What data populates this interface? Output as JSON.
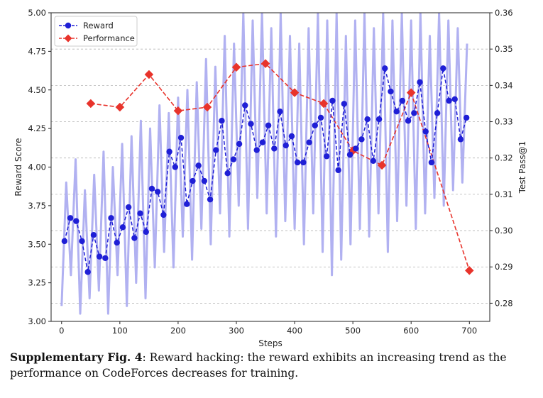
{
  "chart_data": {
    "type": "line",
    "xlabel": "Steps",
    "ylabel_left": "Reward Score",
    "ylabel_right": "Test Pass@1",
    "xlim": [
      -18,
      735
    ],
    "ylim_left": [
      3.0,
      5.0
    ],
    "ylim_right": [
      0.275,
      0.36
    ],
    "x_ticks": [
      "0",
      "100",
      "200",
      "300",
      "400",
      "500",
      "600",
      "700"
    ],
    "y_left_ticks": [
      "3.00",
      "3.25",
      "3.50",
      "3.75",
      "4.00",
      "4.25",
      "4.50",
      "4.75",
      "5.00"
    ],
    "y_right_ticks": [
      "0.28",
      "0.29",
      "0.30",
      "0.31",
      "0.32",
      "0.33",
      "0.34",
      "0.35",
      "0.36"
    ],
    "grid": true,
    "legend_position": "top-left",
    "series": [
      {
        "name": "Reward",
        "axis": "left",
        "color": "#1f1fd6",
        "marker": "circle",
        "linestyle": "dashed",
        "x": [
          5,
          15,
          25,
          35,
          45,
          55,
          65,
          75,
          85,
          95,
          105,
          115,
          125,
          135,
          145,
          155,
          165,
          175,
          185,
          195,
          205,
          215,
          225,
          235,
          245,
          255,
          265,
          275,
          285,
          295,
          305,
          315,
          325,
          335,
          345,
          355,
          365,
          375,
          385,
          395,
          405,
          415,
          425,
          435,
          445,
          455,
          465,
          475,
          485,
          495,
          505,
          515,
          525,
          535,
          545,
          555,
          565,
          575,
          585,
          595,
          605,
          615,
          625,
          635,
          645,
          655,
          665,
          675,
          685,
          695
        ],
        "values": [
          3.52,
          3.67,
          3.65,
          3.52,
          3.32,
          3.56,
          3.42,
          3.41,
          3.67,
          3.51,
          3.61,
          3.74,
          3.54,
          3.7,
          3.58,
          3.86,
          3.84,
          3.69,
          4.1,
          4.0,
          4.19,
          3.76,
          3.91,
          4.01,
          3.91,
          3.79,
          4.11,
          4.3,
          3.96,
          4.05,
          4.15,
          4.4,
          4.28,
          4.11,
          4.16,
          4.27,
          4.12,
          4.36,
          4.14,
          4.2,
          4.03,
          4.03,
          4.16,
          4.27,
          4.32,
          4.07,
          4.43,
          3.98,
          4.41,
          4.08,
          4.12,
          4.18,
          4.31,
          4.04,
          4.31,
          4.64,
          4.49,
          4.36,
          4.43,
          4.3,
          4.35,
          4.55,
          4.23,
          4.03,
          4.35,
          4.64,
          4.43,
          4.44,
          4.18,
          4.32
        ]
      },
      {
        "name": "Performance",
        "axis": "right",
        "color": "#e8332b",
        "marker": "diamond",
        "linestyle": "dashed",
        "x": [
          50,
          100,
          150,
          200,
          250,
          300,
          350,
          400,
          450,
          500,
          550,
          600,
          700
        ],
        "values": [
          0.335,
          0.334,
          0.343,
          0.333,
          0.334,
          0.345,
          0.346,
          0.338,
          0.335,
          0.322,
          0.318,
          0.338,
          0.289
        ]
      },
      {
        "name": "",
        "axis": "left",
        "color": "#a8a8f0",
        "role": "raw-reward-band",
        "x": [
          0,
          8,
          16,
          24,
          32,
          40,
          48,
          56,
          64,
          72,
          80,
          88,
          96,
          104,
          112,
          120,
          128,
          136,
          144,
          152,
          160,
          168,
          176,
          184,
          192,
          200,
          208,
          216,
          224,
          232,
          240,
          248,
          256,
          264,
          272,
          280,
          288,
          296,
          304,
          312,
          320,
          328,
          336,
          344,
          352,
          360,
          368,
          376,
          384,
          392,
          400,
          408,
          416,
          424,
          432,
          440,
          448,
          456,
          464,
          472,
          480,
          488,
          496,
          504,
          512,
          520,
          528,
          536,
          544,
          552,
          560,
          568,
          576,
          584,
          592,
          600,
          608,
          616,
          624,
          632,
          640,
          648,
          656,
          664,
          672,
          680,
          688,
          696
        ],
        "values": [
          3.1,
          3.9,
          3.3,
          4.05,
          3.05,
          3.85,
          3.15,
          3.95,
          3.2,
          4.1,
          3.05,
          4.0,
          3.3,
          4.15,
          3.1,
          4.2,
          3.25,
          4.3,
          3.15,
          4.25,
          3.35,
          4.4,
          3.45,
          4.35,
          3.35,
          4.45,
          3.55,
          4.5,
          3.4,
          4.55,
          3.6,
          4.7,
          3.5,
          4.65,
          3.7,
          4.85,
          3.55,
          4.8,
          3.75,
          5.0,
          3.6,
          4.95,
          3.8,
          5.0,
          3.7,
          4.9,
          3.55,
          5.0,
          3.65,
          4.85,
          3.6,
          4.8,
          3.5,
          4.9,
          3.7,
          5.0,
          3.45,
          4.95,
          3.3,
          5.0,
          3.4,
          4.85,
          3.5,
          4.95,
          3.6,
          5.0,
          3.55,
          4.9,
          3.7,
          5.0,
          3.45,
          4.95,
          3.65,
          5.0,
          3.75,
          4.95,
          3.6,
          5.0,
          3.7,
          4.85,
          3.8,
          5.0,
          3.75,
          4.95,
          3.85,
          4.9,
          3.9,
          4.8
        ]
      }
    ]
  },
  "caption": {
    "label": "Supplementary Fig. 4",
    "text": ": Reward hacking: the reward exhibits an increasing trend as the performance on CodeForces decreases for training."
  }
}
